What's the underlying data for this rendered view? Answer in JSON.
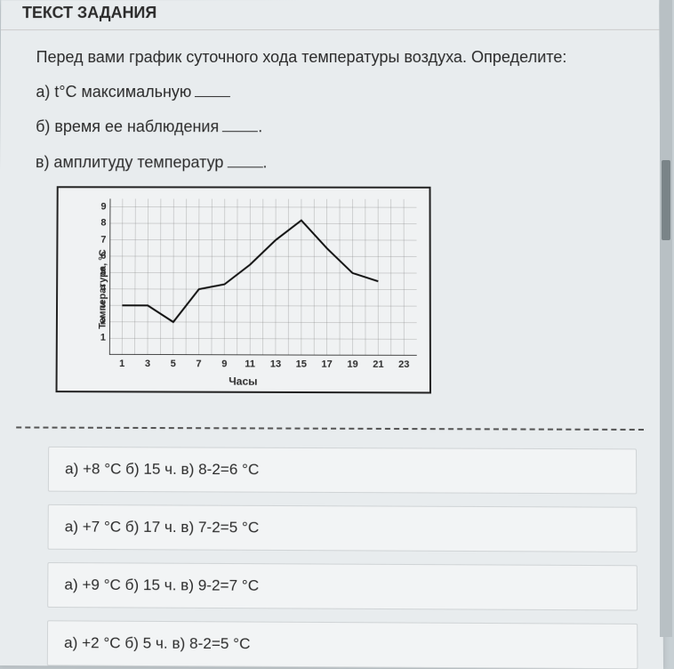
{
  "header": {
    "title": "ТЕКСТ ЗАДАНИЯ"
  },
  "question": {
    "intro": "Перед вами график суточного хода температуры воздуха. Определите:",
    "a": "а) t°С максимальную",
    "b": "б) время ее наблюдения",
    "c": "в) амплитуду температур"
  },
  "chart": {
    "type": "line",
    "ylabel": "Температура, °С",
    "xlabel": "Часы",
    "ylim": [
      0,
      9.5
    ],
    "xlim": [
      0,
      24
    ],
    "yticks": [
      1,
      2,
      3,
      4,
      5,
      6,
      7,
      8,
      9
    ],
    "xticks": [
      1,
      3,
      5,
      7,
      9,
      11,
      13,
      15,
      17,
      19,
      21,
      23
    ],
    "series": {
      "x": [
        1,
        3,
        5,
        7,
        9,
        11,
        13,
        15,
        17,
        19,
        21
      ],
      "y": [
        3,
        3,
        2,
        4,
        4.3,
        5.5,
        7,
        8.2,
        6.5,
        5,
        4.5
      ]
    },
    "line_color": "#111111",
    "line_width": 2,
    "grid_color": "#808080",
    "axis_color": "#111111",
    "background": "#f0f2f3",
    "tick_font_size": 11
  },
  "answers": [
    "а) +8 °С б) 15 ч. в) 8-2=6 °С",
    "а) +7 °С б) 17 ч. в) 7-2=5 °С",
    "а) +9 °С б) 15 ч. в) 9-2=7 °С",
    "а) +2 °С б) 5 ч. в) 8-2=5 °С"
  ]
}
